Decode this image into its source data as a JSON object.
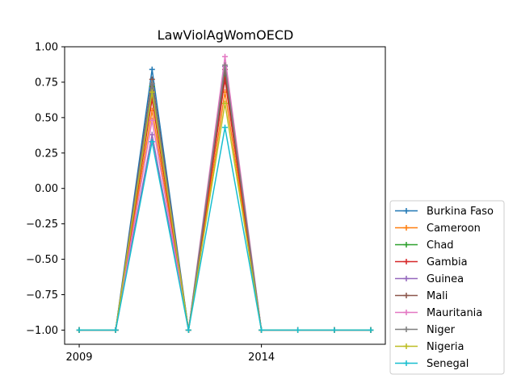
{
  "chart_data": {
    "type": "line",
    "title": "LawViolAgWomOECD",
    "xlabel": "",
    "ylabel": "",
    "x": [
      2009,
      2010,
      2011,
      2012,
      2013,
      2014,
      2015,
      2016,
      2017
    ],
    "xlim": [
      2008.6,
      2017.4
    ],
    "ylim": [
      -1.1,
      1.0
    ],
    "xticks": [
      {
        "value": 2009,
        "label": "2009"
      },
      {
        "value": 2014,
        "label": "2014"
      }
    ],
    "yticks": [
      {
        "value": 1.0,
        "label": "1.00"
      },
      {
        "value": 0.75,
        "label": "0.75"
      },
      {
        "value": 0.5,
        "label": "0.50"
      },
      {
        "value": 0.25,
        "label": "0.25"
      },
      {
        "value": 0.0,
        "label": "0.00"
      },
      {
        "value": -0.25,
        "label": "−0.25"
      },
      {
        "value": -0.5,
        "label": "−0.50"
      },
      {
        "value": -0.75,
        "label": "−0.75"
      },
      {
        "value": -1.0,
        "label": "−1.00"
      }
    ],
    "grid": false,
    "legend_position": "outside-right-bottom",
    "marker": "plus",
    "series": [
      {
        "name": "Burkina Faso",
        "color": "#1f77b4",
        "values": [
          -1,
          -1,
          0.84,
          -1,
          0.8,
          -1,
          -1,
          -1,
          -1
        ]
      },
      {
        "name": "Cameroon",
        "color": "#ff7f0e",
        "values": [
          -1,
          -1,
          0.55,
          -1,
          0.68,
          -1,
          -1,
          -1,
          -1
        ]
      },
      {
        "name": "Chad",
        "color": "#2ca02c",
        "values": [
          -1,
          -1,
          0.72,
          -1,
          0.78,
          -1,
          -1,
          -1,
          -1
        ]
      },
      {
        "name": "Gambia",
        "color": "#d62728",
        "values": [
          -1,
          -1,
          0.63,
          -1,
          0.77,
          -1,
          -1,
          -1,
          -1
        ]
      },
      {
        "name": "Guinea",
        "color": "#9467bd",
        "values": [
          -1,
          -1,
          0.38,
          -1,
          0.86,
          -1,
          -1,
          -1,
          -1
        ]
      },
      {
        "name": "Mali",
        "color": "#8c564b",
        "values": [
          -1,
          -1,
          0.77,
          -1,
          0.84,
          -1,
          -1,
          -1,
          -1
        ]
      },
      {
        "name": "Mauritania",
        "color": "#e377c2",
        "values": [
          -1,
          -1,
          0.48,
          -1,
          0.93,
          -1,
          -1,
          -1,
          -1
        ]
      },
      {
        "name": "Niger",
        "color": "#7f7f7f",
        "values": [
          -1,
          -1,
          0.74,
          -1,
          0.87,
          -1,
          -1,
          -1,
          -1
        ]
      },
      {
        "name": "Nigeria",
        "color": "#bcbd22",
        "values": [
          -1,
          -1,
          0.68,
          -1,
          0.6,
          -1,
          -1,
          -1,
          -1
        ]
      },
      {
        "name": "Senegal",
        "color": "#17becf",
        "values": [
          -1,
          -1,
          0.33,
          -1,
          0.43,
          -1,
          -1,
          -1,
          -1
        ]
      }
    ]
  }
}
